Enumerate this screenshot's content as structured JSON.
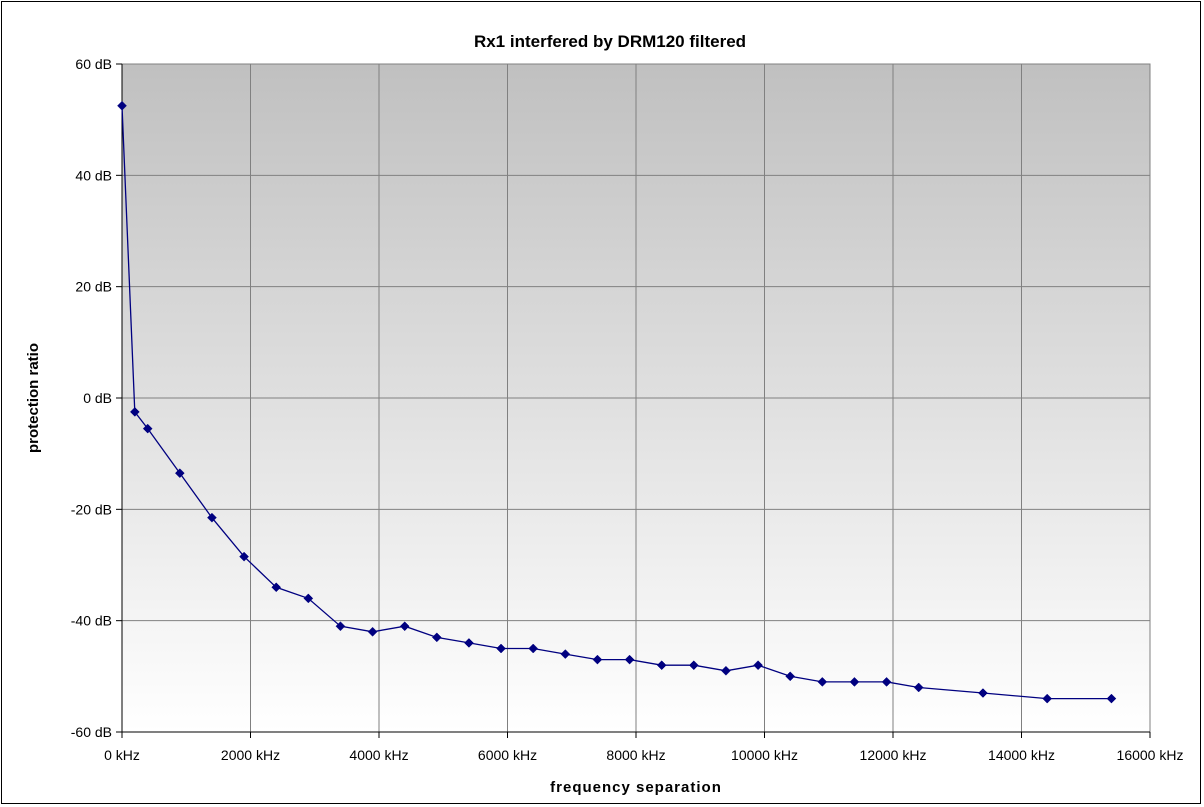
{
  "chart_data": {
    "type": "line",
    "title": "Rx1 interfered by DRM120 filtered",
    "xlabel": "frequency separation",
    "ylabel": "protection ratio",
    "xlim": [
      0,
      16000
    ],
    "ylim": [
      -60,
      60
    ],
    "x_ticks": [
      "0 kHz",
      "2000 kHz",
      "4000 kHz",
      "6000 kHz",
      "8000 kHz",
      "10000 kHz",
      "12000 kHz",
      "14000 kHz",
      "16000 kHz"
    ],
    "y_ticks": [
      "60 dB",
      "40 dB",
      "20 dB",
      "0 dB",
      "-20 dB",
      "-40 dB",
      "-60 dB"
    ],
    "grid": true,
    "legend": "none",
    "colors": {
      "series": "#000080",
      "plot_top": "#c0c0c0",
      "plot_bottom": "#ffffff",
      "grid": "#808080"
    },
    "series": [
      {
        "x": [
          0,
          200,
          400,
          900,
          1400,
          1900,
          2400,
          2900,
          3400,
          3900,
          4400,
          4900,
          5400,
          5900,
          6400,
          6900,
          7400,
          7900,
          8400,
          8900,
          9400,
          9900,
          10400,
          10900,
          11400,
          11900,
          12400,
          13400,
          14400,
          15400
        ],
        "y": [
          52.5,
          -2.5,
          -5.5,
          -13.5,
          -21.5,
          -28.5,
          -34,
          -36,
          -41,
          -42,
          -41,
          -43,
          -44,
          -45,
          -45,
          -46,
          -47,
          -47,
          -48,
          -48,
          -49,
          -48,
          -50,
          -51,
          -51,
          -51,
          -52,
          -53,
          -54,
          -54
        ]
      }
    ]
  }
}
